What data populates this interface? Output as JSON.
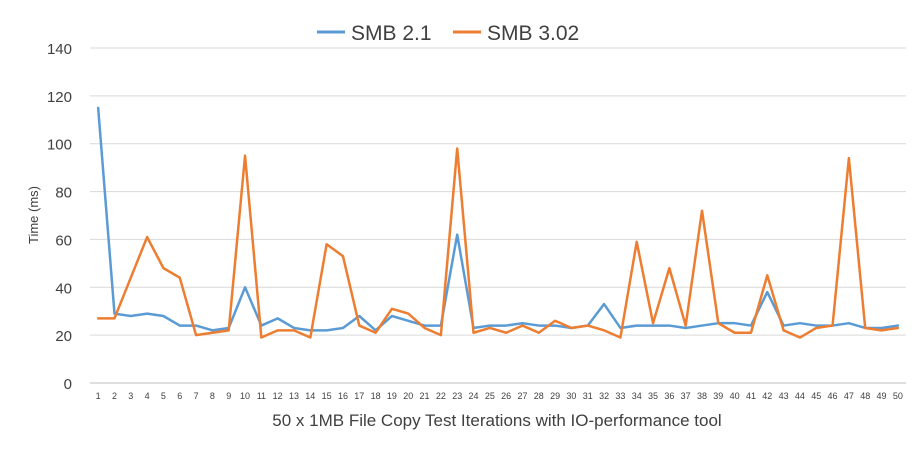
{
  "chart_data": {
    "type": "line",
    "xlabel": "50 x 1MB File Copy Test Iterations with IO-performance tool",
    "ylabel": "Time (ms)",
    "ylim": [
      0,
      140
    ],
    "yticks": [
      0,
      20,
      40,
      60,
      80,
      100,
      120,
      140
    ],
    "grid": true,
    "legend_position": "top",
    "categories": [
      "1",
      "2",
      "3",
      "4",
      "5",
      "6",
      "7",
      "8",
      "9",
      "10",
      "11",
      "12",
      "13",
      "14",
      "15",
      "16",
      "17",
      "18",
      "19",
      "20",
      "21",
      "22",
      "23",
      "24",
      "25",
      "26",
      "27",
      "28",
      "29",
      "30",
      "31",
      "32",
      "33",
      "34",
      "35",
      "36",
      "37",
      "38",
      "39",
      "40",
      "41",
      "42",
      "43",
      "44",
      "45",
      "46",
      "47",
      "48",
      "49",
      "50"
    ],
    "series": [
      {
        "name": "SMB 2.1",
        "color": "#5B9BD5",
        "values": [
          115,
          29,
          28,
          29,
          28,
          24,
          24,
          22,
          23,
          40,
          24,
          27,
          23,
          22,
          22,
          23,
          28,
          22,
          28,
          26,
          24,
          24,
          62,
          23,
          24,
          24,
          25,
          24,
          24,
          23,
          24,
          33,
          23,
          24,
          24,
          24,
          23,
          24,
          25,
          25,
          24,
          38,
          24,
          25,
          24,
          24,
          25,
          23,
          23,
          24
        ]
      },
      {
        "name": "SMB 3.02",
        "color": "#ED7D31",
        "values": [
          27,
          27,
          44,
          61,
          48,
          44,
          20,
          21,
          22,
          95,
          19,
          22,
          22,
          19,
          58,
          53,
          24,
          21,
          31,
          29,
          23,
          20,
          98,
          21,
          23,
          21,
          24,
          21,
          26,
          23,
          24,
          22,
          19,
          59,
          25,
          48,
          24,
          72,
          25,
          21,
          21,
          45,
          22,
          19,
          23,
          24,
          94,
          23,
          22,
          23
        ]
      }
    ]
  }
}
